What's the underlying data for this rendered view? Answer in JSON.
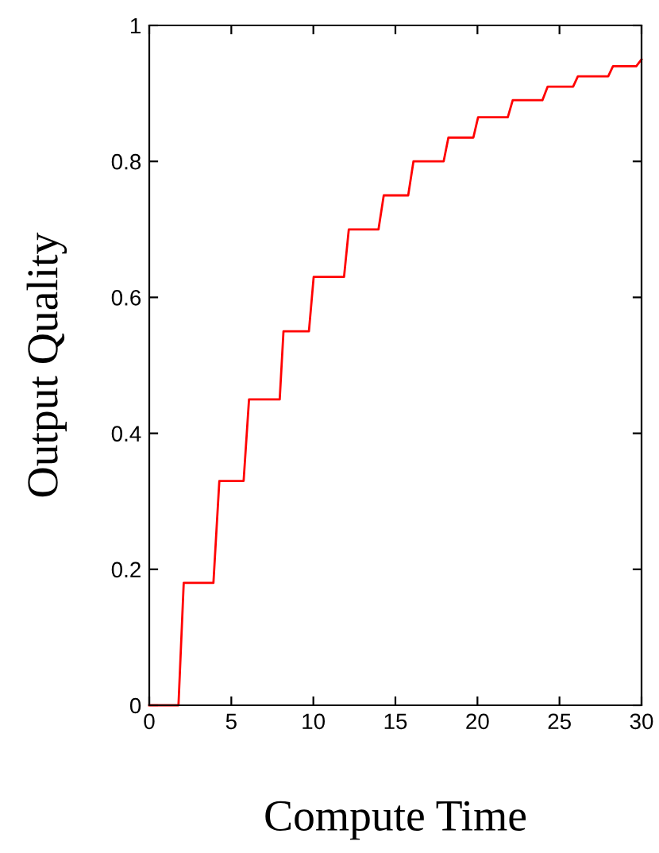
{
  "chart_data": {
    "type": "line",
    "xlabel": "Compute Time",
    "ylabel": "Output Quality",
    "series": [
      {
        "color": "#ff0000",
        "x": [
          0,
          1.78,
          2.1,
          3.91,
          4.27,
          5.75,
          6.08,
          7.95,
          8.18,
          9.73,
          10.02,
          11.87,
          12.16,
          13.97,
          14.29,
          15.78,
          16.1,
          17.94,
          18.23,
          19.75,
          20.04,
          21.85,
          22.15,
          23.96,
          24.28,
          25.83,
          26.12,
          27.97,
          28.26,
          29.68,
          30
        ],
        "values": [
          0,
          0,
          0.18,
          0.18,
          0.33,
          0.33,
          0.45,
          0.45,
          0.55,
          0.55,
          0.63,
          0.63,
          0.7,
          0.7,
          0.75,
          0.75,
          0.8,
          0.8,
          0.835,
          0.835,
          0.865,
          0.865,
          0.89,
          0.89,
          0.91,
          0.91,
          0.925,
          0.925,
          0.94,
          0.94,
          0.95
        ]
      }
    ],
    "xlim": [
      0,
      30
    ],
    "ylim": [
      0,
      1
    ],
    "xticks": [
      0,
      5,
      10,
      15,
      20,
      25,
      30
    ],
    "yticks": [
      0,
      0.2,
      0.4,
      0.6,
      0.8,
      1
    ],
    "grid": false,
    "legend": false,
    "marker": "none",
    "line_style": "solid"
  }
}
